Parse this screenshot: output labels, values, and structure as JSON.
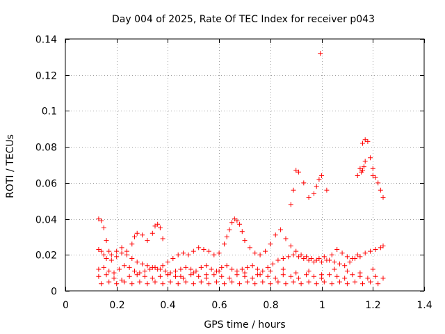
{
  "chart_data": {
    "type": "scatter",
    "title": "Day 004 of 2025, Rate Of TEC Index for receiver p043",
    "xlabel": "GPS time / hours",
    "ylabel": "ROTI / TECUs",
    "xlim": [
      0,
      1.4
    ],
    "ylim": [
      0,
      0.14
    ],
    "xticks": [
      0,
      0.2,
      0.4,
      0.6,
      0.8,
      1,
      1.2,
      1.4
    ],
    "xtick_labels": [
      "0",
      "0.2",
      "0.4",
      "0.6",
      "0.8",
      "1",
      "1.2",
      "1.4"
    ],
    "yticks": [
      0,
      0.02,
      0.04,
      0.06,
      0.08,
      0.1,
      0.12,
      0.14
    ],
    "ytick_labels": [
      "0",
      "0.02",
      "0.04",
      "0.06",
      "0.08",
      "0.1",
      "0.12",
      "0.14"
    ],
    "grid": true,
    "marker": "+",
    "color": "#ff0000",
    "series": [
      {
        "name": "ROTI",
        "x": [
          0.13,
          0.14,
          0.15,
          0.16,
          0.17,
          0.18,
          0.2,
          0.22,
          0.24,
          0.26,
          0.27,
          0.28,
          0.3,
          0.32,
          0.34,
          0.35,
          0.36,
          0.37,
          0.38,
          0.13,
          0.14,
          0.15,
          0.16,
          0.18,
          0.2,
          0.22,
          0.24,
          0.26,
          0.28,
          0.3,
          0.32,
          0.34,
          0.36,
          0.38,
          0.4,
          0.42,
          0.44,
          0.46,
          0.48,
          0.5,
          0.52,
          0.54,
          0.56,
          0.58,
          0.6,
          0.13,
          0.15,
          0.17,
          0.19,
          0.21,
          0.23,
          0.25,
          0.27,
          0.29,
          0.31,
          0.33,
          0.35,
          0.37,
          0.39,
          0.41,
          0.43,
          0.45,
          0.47,
          0.49,
          0.51,
          0.53,
          0.55,
          0.57,
          0.59,
          0.61,
          0.63,
          0.65,
          0.67,
          0.69,
          0.71,
          0.73,
          0.75,
          0.77,
          0.79,
          0.81,
          0.83,
          0.85,
          0.87,
          0.89,
          0.91,
          0.93,
          0.95,
          0.97,
          0.99,
          1.01,
          1.03,
          1.05,
          1.07,
          1.09,
          1.11,
          1.13,
          1.15,
          1.17,
          1.19,
          1.21,
          1.23,
          1.24,
          0.13,
          0.16,
          0.19,
          0.22,
          0.25,
          0.28,
          0.31,
          0.34,
          0.37,
          0.4,
          0.43,
          0.46,
          0.49,
          0.52,
          0.55,
          0.58,
          0.61,
          0.64,
          0.67,
          0.7,
          0.73,
          0.76,
          0.79,
          0.82,
          0.85,
          0.88,
          0.91,
          0.94,
          0.97,
          1.0,
          1.03,
          1.06,
          1.09,
          1.12,
          1.15,
          1.18,
          1.21,
          1.24,
          0.14,
          0.17,
          0.2,
          0.23,
          0.26,
          0.29,
          0.32,
          0.35,
          0.38,
          0.41,
          0.44,
          0.47,
          0.5,
          0.53,
          0.56,
          0.59,
          0.62,
          0.65,
          0.68,
          0.71,
          0.74,
          0.77,
          0.8,
          0.83,
          0.86,
          0.89,
          0.92,
          0.95,
          0.98,
          1.01,
          1.04,
          1.07,
          1.1,
          1.13,
          1.16,
          1.19,
          1.22,
          0.62,
          0.63,
          0.64,
          0.65,
          0.66,
          0.67,
          0.68,
          0.69,
          0.7,
          0.72,
          0.74,
          0.76,
          0.78,
          0.8,
          0.82,
          0.84,
          0.86,
          0.88,
          0.9,
          0.92,
          0.94,
          0.96,
          0.98,
          1.0,
          1.02,
          1.04,
          1.06,
          1.08,
          1.1,
          1.12,
          1.14,
          0.88,
          0.89,
          0.9,
          0.91,
          0.93,
          0.95,
          0.97,
          0.98,
          0.99,
          1.0,
          1.02,
          1.14,
          1.15,
          1.16,
          1.17,
          1.18,
          1.19,
          1.2,
          1.21,
          1.22,
          1.23,
          1.24,
          0.995,
          1.155,
          1.16,
          1.165,
          1.17,
          1.2,
          0.4,
          0.45,
          0.5,
          0.55,
          0.6,
          0.7,
          0.75,
          0.8,
          0.85,
          0.9,
          0.95,
          1.0,
          1.05,
          1.1,
          1.15,
          1.2
        ],
        "y": [
          0.04,
          0.039,
          0.035,
          0.028,
          0.022,
          0.02,
          0.022,
          0.024,
          0.022,
          0.026,
          0.03,
          0.032,
          0.031,
          0.028,
          0.032,
          0.036,
          0.037,
          0.035,
          0.029,
          0.023,
          0.022,
          0.02,
          0.018,
          0.017,
          0.019,
          0.021,
          0.02,
          0.018,
          0.016,
          0.015,
          0.014,
          0.013,
          0.012,
          0.014,
          0.016,
          0.018,
          0.02,
          0.021,
          0.02,
          0.022,
          0.024,
          0.023,
          0.022,
          0.02,
          0.021,
          0.012,
          0.013,
          0.011,
          0.01,
          0.012,
          0.014,
          0.013,
          0.011,
          0.01,
          0.011,
          0.012,
          0.013,
          0.012,
          0.011,
          0.01,
          0.011,
          0.012,
          0.013,
          0.012,
          0.011,
          0.013,
          0.014,
          0.012,
          0.011,
          0.013,
          0.014,
          0.012,
          0.011,
          0.012,
          0.013,
          0.014,
          0.012,
          0.011,
          0.013,
          0.015,
          0.017,
          0.018,
          0.019,
          0.02,
          0.019,
          0.018,
          0.017,
          0.016,
          0.018,
          0.019,
          0.017,
          0.016,
          0.015,
          0.014,
          0.016,
          0.018,
          0.019,
          0.021,
          0.022,
          0.023,
          0.024,
          0.025,
          0.008,
          0.009,
          0.007,
          0.006,
          0.008,
          0.009,
          0.008,
          0.007,
          0.008,
          0.009,
          0.008,
          0.007,
          0.009,
          0.008,
          0.007,
          0.009,
          0.008,
          0.007,
          0.009,
          0.008,
          0.007,
          0.009,
          0.008,
          0.007,
          0.009,
          0.008,
          0.007,
          0.009,
          0.008,
          0.007,
          0.009,
          0.008,
          0.007,
          0.009,
          0.008,
          0.007,
          0.008,
          0.007,
          0.004,
          0.005,
          0.004,
          0.005,
          0.004,
          0.005,
          0.004,
          0.005,
          0.004,
          0.005,
          0.004,
          0.005,
          0.004,
          0.005,
          0.004,
          0.005,
          0.004,
          0.005,
          0.004,
          0.005,
          0.004,
          0.005,
          0.004,
          0.005,
          0.004,
          0.005,
          0.004,
          0.005,
          0.004,
          0.005,
          0.004,
          0.005,
          0.004,
          0.005,
          0.004,
          0.005,
          0.004,
          0.026,
          0.03,
          0.034,
          0.038,
          0.04,
          0.039,
          0.037,
          0.033,
          0.028,
          0.024,
          0.021,
          0.02,
          0.022,
          0.026,
          0.031,
          0.034,
          0.029,
          0.025,
          0.022,
          0.02,
          0.019,
          0.018,
          0.017,
          0.016,
          0.017,
          0.02,
          0.023,
          0.021,
          0.019,
          0.018,
          0.02,
          0.048,
          0.056,
          0.067,
          0.066,
          0.06,
          0.052,
          0.054,
          0.058,
          0.062,
          0.064,
          0.056,
          0.064,
          0.068,
          0.082,
          0.084,
          0.083,
          0.074,
          0.068,
          0.063,
          0.06,
          0.056,
          0.052,
          0.132,
          0.066,
          0.067,
          0.069,
          0.072,
          0.064,
          0.009,
          0.008,
          0.01,
          0.009,
          0.011,
          0.01,
          0.009,
          0.011,
          0.012,
          0.01,
          0.011,
          0.009,
          0.012,
          0.011,
          0.01,
          0.012
        ]
      }
    ]
  }
}
